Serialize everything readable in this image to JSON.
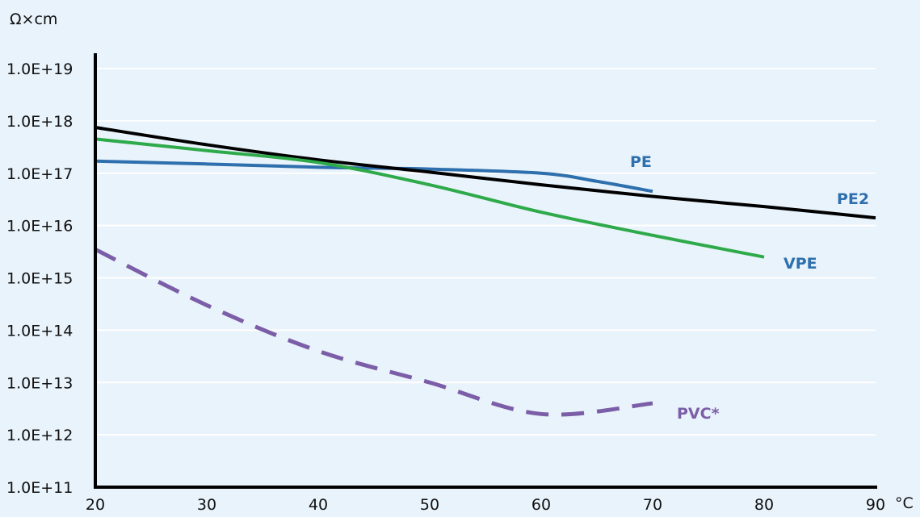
{
  "chart_data": {
    "type": "line",
    "title": "",
    "xlabel": "°C",
    "ylabel": "Ω×cm",
    "y_scale": "log",
    "xlim": [
      20,
      90
    ],
    "ylim": [
      100000000000.0,
      1e+19
    ],
    "x_ticks": [
      20,
      30,
      40,
      50,
      60,
      70,
      80,
      90
    ],
    "x_tick_labels": [
      "20",
      "30",
      "40",
      "50",
      "60",
      "70",
      "80",
      "90"
    ],
    "y_ticks": [
      100000000000.0,
      1000000000000.0,
      10000000000000.0,
      100000000000000.0,
      1000000000000000.0,
      1e+16,
      1e+17,
      1e+18,
      1e+19
    ],
    "y_tick_labels": [
      "1.0E+11",
      "1.0E+12",
      "1.0E+13",
      "1.0E+14",
      "1.0E+15",
      "1.0E+16",
      "1.0E+17",
      "1.0E+18",
      "1.0E+19"
    ],
    "grid": true,
    "legend": "none",
    "series": [
      {
        "name": "PE",
        "color": "#2e6fad",
        "style": "solid",
        "x": [
          20,
          30,
          40,
          45,
          50,
          60,
          65,
          70
        ],
        "y": [
          1.7e+17,
          1.5e+17,
          1.3e+17,
          1.25e+17,
          1.2e+17,
          1e+17,
          7e+16,
          4.5e+16
        ]
      },
      {
        "name": "PE2",
        "color": "#000000",
        "style": "solid",
        "x": [
          20,
          30,
          40,
          50,
          60,
          70,
          80,
          90
        ],
        "y": [
          7.5e+17,
          3.5e+17,
          1.8e+17,
          1.05e+17,
          6e+16,
          3.6e+16,
          2.3e+16,
          1.4e+16
        ]
      },
      {
        "name": "VPE",
        "color": "#2eaa4a",
        "style": "solid",
        "x": [
          20,
          30,
          40,
          50,
          60,
          70,
          80
        ],
        "y": [
          4.5e+17,
          2.7e+17,
          1.6e+17,
          6e+16,
          1.8e+16,
          6500000000000000.0,
          2500000000000000.0
        ]
      },
      {
        "name": "PVC*",
        "color": "#7b5ea7",
        "style": "dashed",
        "x": [
          20,
          30,
          40,
          50,
          60,
          70
        ],
        "y": [
          3500000000000000.0,
          300000000000000.0,
          40000000000000.0,
          10000000000000.0,
          2500000000000.0,
          4000000000000.0
        ]
      }
    ]
  }
}
